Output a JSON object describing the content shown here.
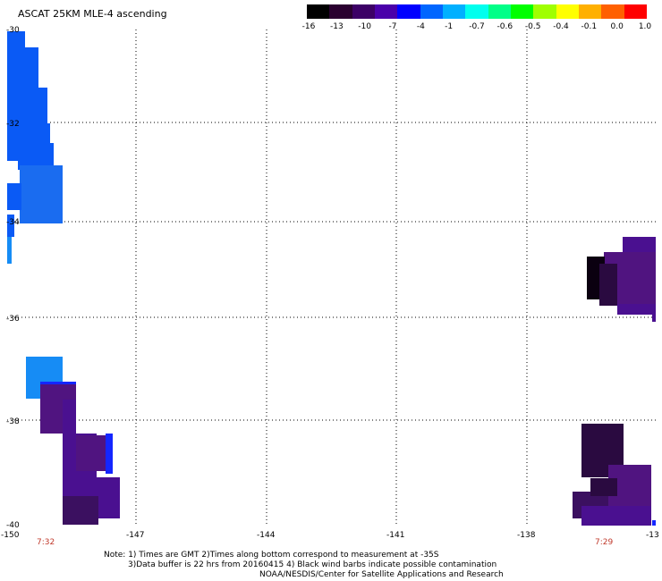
{
  "title": "ASCAT 25KM MLE-4 ascending",
  "colorbar": {
    "labels": [
      "-16",
      "-13",
      "-10",
      "-7",
      "-4",
      "-1",
      "-0.7",
      "-0.6",
      "-0.5",
      "-0.4",
      "-0.1",
      "0.0",
      "1.0"
    ],
    "colors": [
      "#000000",
      "#2a0030",
      "#3c0066",
      "#4a00aa",
      "#0000ff",
      "#0066ff",
      "#00b0ff",
      "#00ffee",
      "#00ff88",
      "#00ff00",
      "#a0ff00",
      "#ffff00",
      "#ffb000",
      "#ff6000",
      "#ff0000"
    ]
  },
  "map": {
    "lat_labels": [
      "-30",
      "-32",
      "-34",
      "-36",
      "-38",
      "-40"
    ],
    "lon_labels": [
      "-150",
      "-147",
      "-144",
      "-141",
      "-138",
      "-13"
    ],
    "pass_times": [
      "7:32",
      "7:29"
    ],
    "swath_colors": {
      "blue": "#0a5af5",
      "mid_blue": "#1a6cf0",
      "cyan_blue": "#168cf5",
      "pure_blue": "#1426ff",
      "violet": "#4a1090",
      "purple": "#501480",
      "dark_purple": "#3b1060",
      "deep_purple": "#2a0a40",
      "near_black": "#0b0010"
    }
  },
  "notes": {
    "line1": "Note: 1) Times are GMT 2)Times along bottom correspond to measurement at -35S",
    "line2": "3)Data buffer is 22 hrs from 20160415 4) Black wind barbs indicate possible contamination",
    "line3": "NOAA/NESDIS/Center for Satellite Applications and Research"
  }
}
